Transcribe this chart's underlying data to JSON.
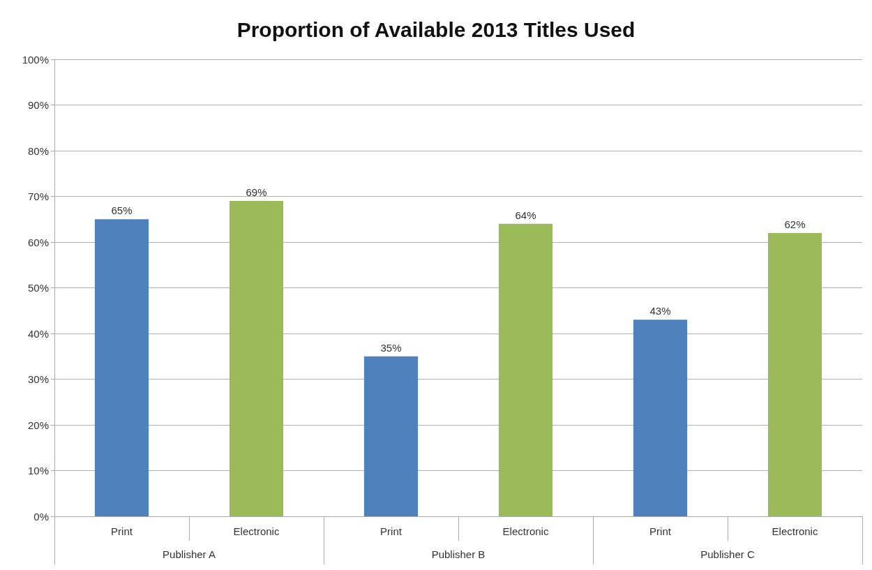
{
  "chart_data": {
    "type": "bar",
    "title": "Proportion of Available 2013 Titles Used",
    "categories": [
      "Print",
      "Electronic",
      "Print",
      "Electronic",
      "Print",
      "Electronic"
    ],
    "values": [
      65,
      69,
      35,
      64,
      43,
      62
    ],
    "colors": [
      "#4f81bd",
      "#9bbb59",
      "#4f81bd",
      "#9bbb59",
      "#4f81bd",
      "#9bbb59"
    ],
    "value_labels": [
      "65%",
      "69%",
      "35%",
      "64%",
      "43%",
      "62%"
    ],
    "annotations": [
      "Publisher A",
      "Publisher B",
      "Publisher C"
    ],
    "ylim": [
      0,
      100
    ],
    "yticks": [
      {
        "value": 0,
        "label": "0%"
      },
      {
        "value": 10,
        "label": "10%"
      },
      {
        "value": 20,
        "label": "20%"
      },
      {
        "value": 30,
        "label": "30%"
      },
      {
        "value": 40,
        "label": "40%"
      },
      {
        "value": 50,
        "label": "50%"
      },
      {
        "value": 60,
        "label": "60%"
      },
      {
        "value": 70,
        "label": "70%"
      },
      {
        "value": 80,
        "label": "80%"
      },
      {
        "value": 90,
        "label": "90%"
      },
      {
        "value": 100,
        "label": "100%"
      }
    ],
    "grid": "y"
  }
}
